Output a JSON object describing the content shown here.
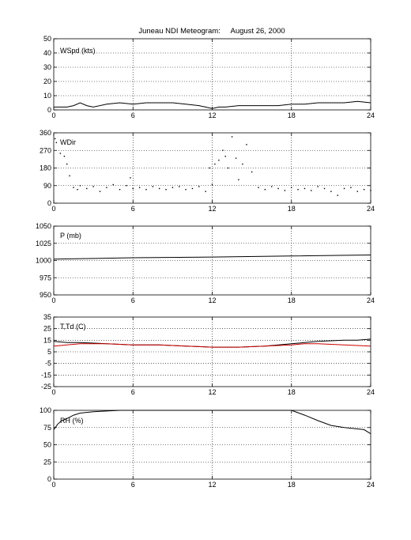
{
  "title": "Juneau NDI Meteogram:     August 26, 2000",
  "colors": {
    "axes": "#000000",
    "grid": "#000000",
    "temperature": "#000000",
    "dewpoint": "#cc0000"
  },
  "chart_data": [
    {
      "type": "line",
      "panel_label": "WSpd (kts)",
      "xlim": [
        0,
        24
      ],
      "ylim": [
        0,
        50
      ],
      "xticks": [
        "0",
        "6",
        "12",
        "18",
        "24"
      ],
      "yticks": [
        "0",
        "10",
        "20",
        "30",
        "40",
        "50"
      ],
      "grid": true,
      "series": [
        {
          "values": [
            [
              0,
              2
            ],
            [
              1,
              2
            ],
            [
              1.5,
              3
            ],
            [
              2,
              5
            ],
            [
              2.5,
              3
            ],
            [
              3,
              2
            ],
            [
              4,
              4
            ],
            [
              5,
              5
            ],
            [
              6,
              4
            ],
            [
              7,
              5
            ],
            [
              8,
              5
            ],
            [
              9,
              5
            ],
            [
              10,
              4
            ],
            [
              11,
              3
            ],
            [
              11.5,
              2
            ],
            [
              12,
              1
            ],
            [
              12.5,
              2
            ],
            [
              13,
              2
            ],
            [
              14,
              3
            ],
            [
              15,
              3
            ],
            [
              16,
              3
            ],
            [
              17,
              3
            ],
            [
              18,
              4
            ],
            [
              19,
              4
            ],
            [
              20,
              5
            ],
            [
              21,
              5
            ],
            [
              22,
              5
            ],
            [
              23,
              6
            ],
            [
              24,
              5
            ]
          ]
        }
      ]
    },
    {
      "type": "scatter",
      "panel_label": "WDir",
      "xlim": [
        0,
        24
      ],
      "ylim": [
        0,
        360
      ],
      "xticks": [
        "0",
        "6",
        "12",
        "18",
        "24"
      ],
      "yticks": [
        "0",
        "90",
        "180",
        "270",
        "360"
      ],
      "grid": true,
      "series": [
        {
          "values": [
            [
              0.1,
              330
            ],
            [
              0.2,
              310
            ],
            [
              0.5,
              255
            ],
            [
              0.8,
              240
            ],
            [
              1.0,
              200
            ],
            [
              1.2,
              140
            ],
            [
              1.5,
              80
            ],
            [
              1.8,
              70
            ],
            [
              2.0,
              90
            ],
            [
              2.5,
              75
            ],
            [
              3.0,
              85
            ],
            [
              3.5,
              60
            ],
            [
              4.0,
              80
            ],
            [
              4.5,
              95
            ],
            [
              5.0,
              70
            ],
            [
              5.5,
              90
            ],
            [
              5.8,
              130
            ],
            [
              6.0,
              75
            ],
            [
              6.5,
              80
            ],
            [
              7.0,
              70
            ],
            [
              7.5,
              85
            ],
            [
              8.0,
              75
            ],
            [
              8.5,
              70
            ],
            [
              9.0,
              80
            ],
            [
              9.5,
              85
            ],
            [
              10.0,
              70
            ],
            [
              10.5,
              75
            ],
            [
              11.0,
              85
            ],
            [
              11.5,
              60
            ],
            [
              11.8,
              180
            ],
            [
              12.0,
              95
            ],
            [
              12.2,
              200
            ],
            [
              12.5,
              220
            ],
            [
              12.8,
              270
            ],
            [
              13.0,
              240
            ],
            [
              13.2,
              180
            ],
            [
              13.5,
              340
            ],
            [
              13.8,
              230
            ],
            [
              14.0,
              120
            ],
            [
              14.3,
              200
            ],
            [
              14.6,
              300
            ],
            [
              15.0,
              160
            ],
            [
              15.5,
              80
            ],
            [
              16.0,
              70
            ],
            [
              16.5,
              85
            ],
            [
              17.0,
              75
            ],
            [
              17.5,
              65
            ],
            [
              18.0,
              80
            ],
            [
              18.5,
              70
            ],
            [
              19.0,
              75
            ],
            [
              19.5,
              65
            ],
            [
              20.0,
              85
            ],
            [
              20.5,
              75
            ],
            [
              21.0,
              60
            ],
            [
              21.5,
              40
            ],
            [
              22.0,
              75
            ],
            [
              22.5,
              80
            ],
            [
              23.0,
              60
            ],
            [
              23.5,
              70
            ],
            [
              24.0,
              65
            ]
          ]
        }
      ]
    },
    {
      "type": "line",
      "panel_label": "P (mb)",
      "xlim": [
        0,
        24
      ],
      "ylim": [
        950,
        1050
      ],
      "xticks": [
        "0",
        "6",
        "12",
        "18",
        "24"
      ],
      "yticks": [
        "950",
        "975",
        "1000",
        "1025",
        "1050"
      ],
      "grid": true,
      "series": [
        {
          "values": [
            [
              0,
              1002
            ],
            [
              6,
              1004
            ],
            [
              12,
              1005
            ],
            [
              18,
              1006.5
            ],
            [
              24,
              1008
            ]
          ]
        }
      ]
    },
    {
      "type": "line",
      "panel_label": "T,Td (C)",
      "xlim": [
        0,
        24
      ],
      "ylim": [
        -25,
        35
      ],
      "xticks": [
        "0",
        "6",
        "12",
        "18",
        "24"
      ],
      "yticks": [
        "-25",
        "-15",
        "-5",
        "5",
        "15",
        "25",
        "35"
      ],
      "grid": true,
      "series": [
        {
          "values": [
            [
              0,
              14
            ],
            [
              1,
              13
            ],
            [
              2,
              13
            ],
            [
              4,
              12
            ],
            [
              6,
              11
            ],
            [
              8,
              11
            ],
            [
              10,
              10
            ],
            [
              12,
              9
            ],
            [
              14,
              9
            ],
            [
              16,
              10
            ],
            [
              18,
              12
            ],
            [
              19,
              13
            ],
            [
              20,
              14
            ],
            [
              22,
              15
            ],
            [
              23,
              15
            ],
            [
              24,
              16
            ]
          ]
        },
        {
          "values": [
            [
              0,
              10
            ],
            [
              1,
              11
            ],
            [
              2,
              12
            ],
            [
              4,
              12
            ],
            [
              6,
              11
            ],
            [
              8,
              11
            ],
            [
              10,
              10
            ],
            [
              12,
              9
            ],
            [
              14,
              9
            ],
            [
              16,
              10
            ],
            [
              18,
              11
            ],
            [
              19,
              12
            ],
            [
              20,
              12
            ],
            [
              22,
              11
            ],
            [
              24,
              10
            ]
          ]
        }
      ]
    },
    {
      "type": "line",
      "panel_label": "RH (%)",
      "xlim": [
        0,
        24
      ],
      "ylim": [
        0,
        100
      ],
      "xticks": [
        "0",
        "6",
        "12",
        "18",
        "24"
      ],
      "yticks": [
        "0",
        "25",
        "50",
        "75",
        "100"
      ],
      "grid": true,
      "series": [
        {
          "values": [
            [
              0,
              72
            ],
            [
              0.3,
              80
            ],
            [
              0.6,
              85
            ],
            [
              1,
              88
            ],
            [
              1.5,
              93
            ],
            [
              2,
              96
            ],
            [
              3,
              98
            ],
            [
              4,
              99
            ],
            [
              5,
              100
            ],
            [
              6,
              100
            ],
            [
              8,
              100
            ],
            [
              10,
              100
            ],
            [
              12,
              100
            ],
            [
              14,
              100
            ],
            [
              16,
              100
            ],
            [
              17.5,
              100
            ],
            [
              18,
              100
            ],
            [
              19,
              93
            ],
            [
              20,
              85
            ],
            [
              21,
              78
            ],
            [
              22,
              75
            ],
            [
              23,
              73
            ],
            [
              23.5,
              72
            ],
            [
              24,
              66
            ]
          ]
        }
      ]
    }
  ]
}
